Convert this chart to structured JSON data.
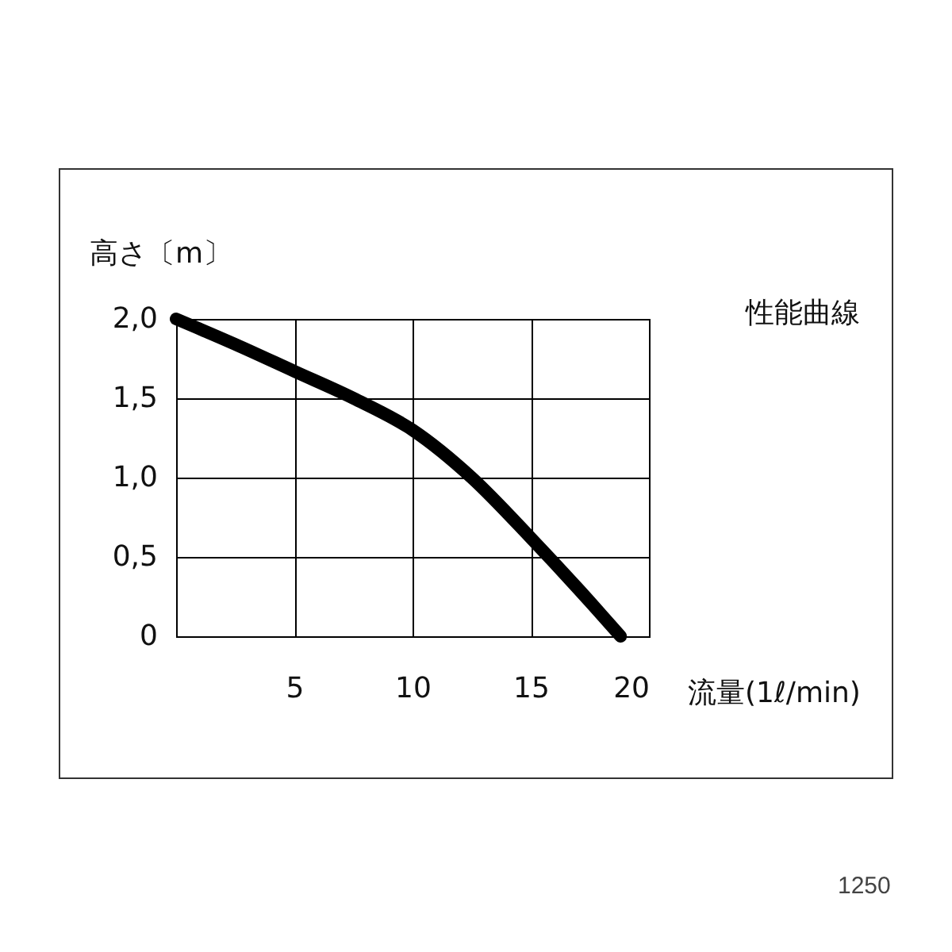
{
  "chart_data": {
    "type": "line",
    "title": "性能曲線",
    "ylabel": "高さ〔m〕",
    "xlabel": "流量(1ℓ/min)",
    "x": [
      0,
      2.5,
      5,
      7.5,
      10,
      12.5,
      15,
      17,
      18.8
    ],
    "series": [
      {
        "color": "#000000",
        "values": [
          2.0,
          1.84,
          1.67,
          1.5,
          1.3,
          1.0,
          0.62,
          0.3,
          0
        ]
      }
    ],
    "xlim": [
      0,
      20
    ],
    "xticks": [
      5,
      10,
      15,
      20
    ],
    "ylim": [
      0,
      2
    ],
    "yticks": [
      {
        "value": 0,
        "label": "0"
      },
      {
        "value": 0.5,
        "label": "0,5"
      },
      {
        "value": 1,
        "label": "1,0"
      },
      {
        "value": 1.5,
        "label": "1,5"
      },
      {
        "value": 2,
        "label": "2,0"
      }
    ],
    "grid": true,
    "marker": "none",
    "line_style": "solid",
    "annotations": [
      "1250"
    ]
  }
}
